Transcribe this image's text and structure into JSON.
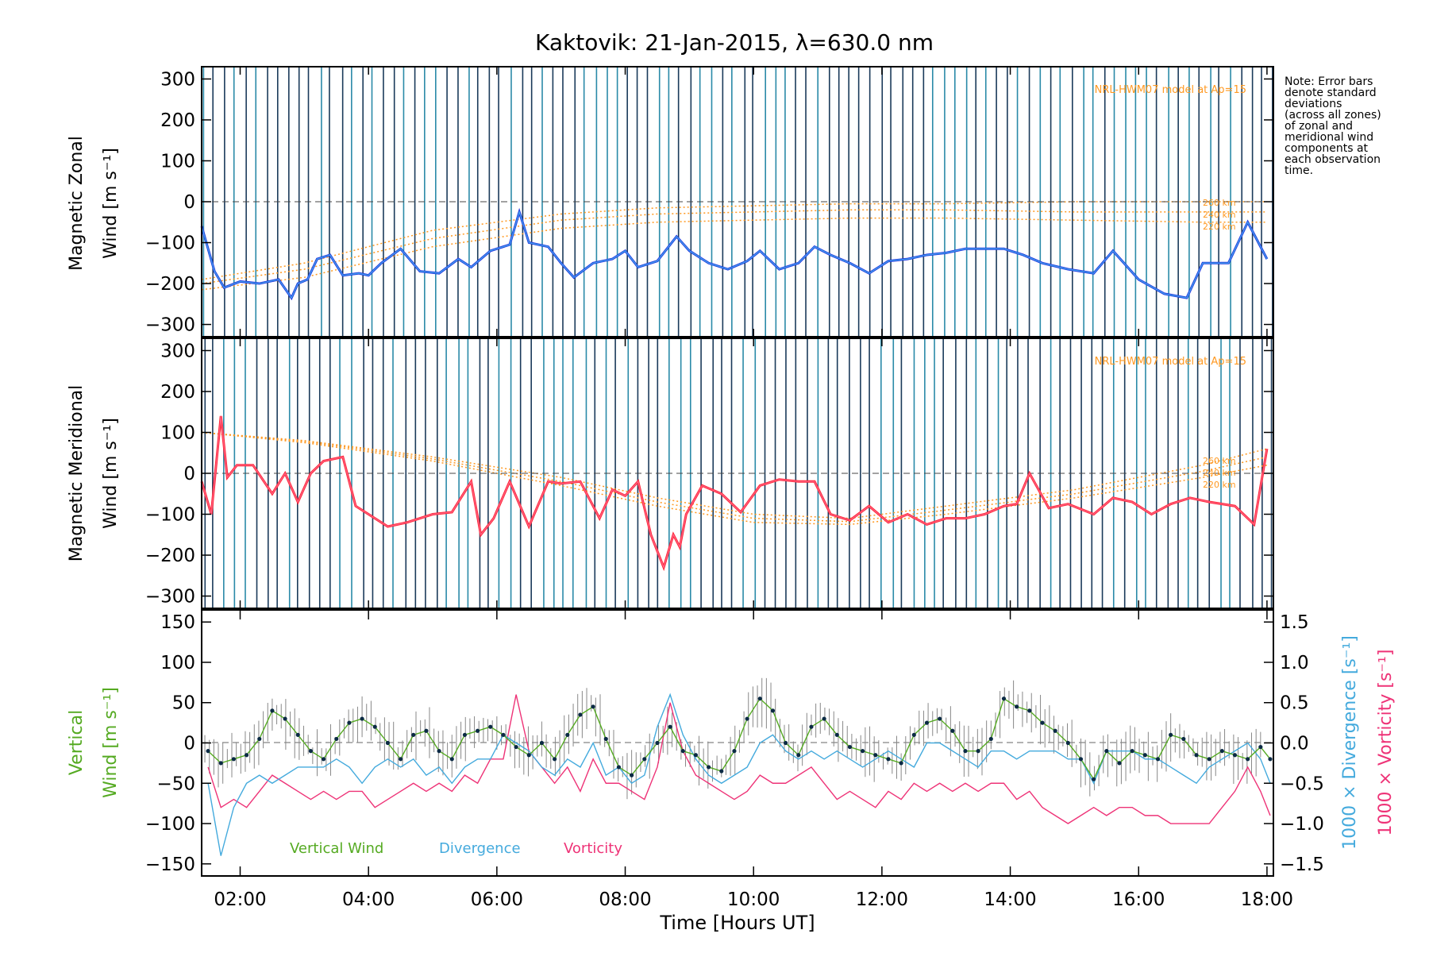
{
  "figure": {
    "title": "Kaktovik: 21-Jan-2015, λ=630.0 nm",
    "xlabel": "Time [Hours UT]",
    "note_lines": [
      "Note: Error bars",
      "denote standard",
      "deviations",
      "(across all zones)",
      "of zonal and",
      "meridional wind",
      "components at",
      "each observation",
      "time."
    ],
    "colors": {
      "zonal": "#2233dd",
      "zonal_light": "#44aaee",
      "meridional": "#ff2233",
      "meridional_light": "#ff6688",
      "vertical": "#55aa22",
      "divergence": "#44aadd",
      "vorticity": "#ee3377",
      "model": "#ff9922",
      "errorbar_dark": "#1a3a5a",
      "errorbar_light": "#2a8aa8"
    }
  },
  "chart_data": [
    {
      "type": "line",
      "panel": "zonal",
      "ylabel_line1": "Magnetic Zonal",
      "ylabel_line2": "Wind [m s⁻¹]",
      "ylim": [
        -330,
        330
      ],
      "yticks": [
        -300,
        -200,
        -100,
        0,
        100,
        200,
        300
      ],
      "ytick_labels": [
        "−300",
        "−200",
        "−100",
        "0",
        "100",
        "200",
        "300"
      ],
      "model_label": "NRL-HWM07 model at Ap=15",
      "model_alt_labels": [
        "260 km",
        "240 km",
        "220 km"
      ],
      "x": [
        1.4,
        1.6,
        1.75,
        2.0,
        2.3,
        2.6,
        2.8,
        2.9,
        3.05,
        3.2,
        3.4,
        3.6,
        3.85,
        4.0,
        4.2,
        4.5,
        4.8,
        5.1,
        5.4,
        5.6,
        5.9,
        6.2,
        6.35,
        6.5,
        6.8,
        7.0,
        7.2,
        7.5,
        7.8,
        8.0,
        8.2,
        8.5,
        8.8,
        9.0,
        9.3,
        9.6,
        9.9,
        10.1,
        10.4,
        10.7,
        10.95,
        11.2,
        11.5,
        11.8,
        12.1,
        12.4,
        12.7,
        13.0,
        13.3,
        13.6,
        13.9,
        14.2,
        14.5,
        14.9,
        15.3,
        15.6,
        16.0,
        16.4,
        16.75,
        17.0,
        17.4,
        17.7,
        18.0
      ],
      "series": [
        {
          "values": [
            -60,
            -170,
            -210,
            -195,
            -200,
            -190,
            -235,
            -200,
            -190,
            -140,
            -130,
            -180,
            -175,
            -180,
            -150,
            -115,
            -170,
            -175,
            -140,
            -160,
            -120,
            -105,
            -25,
            -100,
            -110,
            -150,
            -185,
            -150,
            -140,
            -120,
            -160,
            -145,
            -85,
            -120,
            -150,
            -165,
            -145,
            -120,
            -165,
            -150,
            -110,
            -130,
            -150,
            -175,
            -145,
            -140,
            -130,
            -125,
            -115,
            -115,
            -115,
            -130,
            -150,
            -165,
            -175,
            -120,
            -190,
            -225,
            -235,
            -150,
            -150,
            -50,
            -140
          ]
        }
      ],
      "model_series": [
        {
          "name": "260 km",
          "x": [
            1.4,
            3.0,
            5.0,
            7.0,
            8.5,
            10.0,
            11.5,
            13.0,
            15.0,
            17.0,
            18.0
          ],
          "values": [
            -190,
            -150,
            -70,
            -30,
            -15,
            -10,
            -5,
            -5,
            0,
            0,
            0
          ]
        },
        {
          "name": "240 km",
          "x": [
            1.4,
            3.0,
            5.0,
            7.0,
            8.5,
            10.0,
            11.5,
            13.0,
            15.0,
            17.0,
            18.0
          ],
          "values": [
            -200,
            -165,
            -90,
            -45,
            -30,
            -25,
            -20,
            -20,
            -25,
            -25,
            -25
          ]
        },
        {
          "name": "220 km",
          "x": [
            1.4,
            3.0,
            5.0,
            7.0,
            8.5,
            10.0,
            11.5,
            13.0,
            15.0,
            17.0,
            18.0
          ],
          "values": [
            -215,
            -185,
            -110,
            -65,
            -50,
            -45,
            -40,
            -40,
            -45,
            -50,
            -50
          ]
        }
      ]
    },
    {
      "type": "line",
      "panel": "meridional",
      "ylabel_line1": "Magnetic Meridional",
      "ylabel_line2": "Wind [m s⁻¹]",
      "ylim": [
        -330,
        330
      ],
      "yticks": [
        -300,
        -200,
        -100,
        0,
        100,
        200,
        300
      ],
      "ytick_labels": [
        "−300",
        "−200",
        "−100",
        "0",
        "100",
        "200",
        "300"
      ],
      "model_label": "NRL-HWM07 model at Ap=15",
      "model_alt_labels": [
        "260 km",
        "240 km",
        "220 km"
      ],
      "x": [
        1.4,
        1.55,
        1.7,
        1.8,
        1.95,
        2.2,
        2.5,
        2.7,
        2.9,
        3.1,
        3.3,
        3.6,
        3.8,
        4.0,
        4.3,
        4.6,
        5.0,
        5.3,
        5.6,
        5.75,
        5.95,
        6.2,
        6.5,
        6.8,
        7.0,
        7.3,
        7.6,
        7.8,
        8.0,
        8.2,
        8.4,
        8.6,
        8.75,
        8.85,
        8.95,
        9.2,
        9.5,
        9.8,
        10.1,
        10.4,
        10.7,
        10.95,
        11.2,
        11.5,
        11.8,
        12.1,
        12.4,
        12.7,
        13.0,
        13.3,
        13.6,
        13.9,
        14.1,
        14.3,
        14.6,
        14.9,
        15.3,
        15.6,
        15.9,
        16.2,
        16.5,
        16.8,
        17.1,
        17.5,
        17.8,
        18.0
      ],
      "series": [
        {
          "values": [
            -20,
            -100,
            140,
            -10,
            20,
            20,
            -50,
            0,
            -70,
            0,
            30,
            40,
            -80,
            -100,
            -130,
            -120,
            -100,
            -95,
            -20,
            -150,
            -110,
            -20,
            -130,
            -20,
            -25,
            -20,
            -110,
            -40,
            -55,
            -20,
            -150,
            -230,
            -150,
            -180,
            -100,
            -30,
            -50,
            -95,
            -30,
            -15,
            -20,
            -20,
            -100,
            -115,
            -80,
            -120,
            -100,
            -125,
            -110,
            -110,
            -100,
            -80,
            -75,
            0,
            -85,
            -75,
            -100,
            -60,
            -70,
            -100,
            -75,
            -60,
            -70,
            -80,
            -125,
            60
          ]
        }
      ],
      "model_series": [
        {
          "name": "260 km",
          "x": [
            1.4,
            3.0,
            5.0,
            7.0,
            8.5,
            10.0,
            11.5,
            13.0,
            15.0,
            17.0,
            18.0
          ],
          "values": [
            100,
            80,
            40,
            -10,
            -60,
            -100,
            -110,
            -80,
            -40,
            20,
            60
          ]
        },
        {
          "name": "240 km",
          "x": [
            1.4,
            3.0,
            5.0,
            7.0,
            8.5,
            10.0,
            11.5,
            13.0,
            15.0,
            17.0,
            18.0
          ],
          "values": [
            100,
            78,
            35,
            -20,
            -70,
            -110,
            -118,
            -90,
            -50,
            5,
            40
          ]
        },
        {
          "name": "220 km",
          "x": [
            1.4,
            3.0,
            5.0,
            7.0,
            8.5,
            10.0,
            11.5,
            13.0,
            15.0,
            17.0,
            18.0
          ],
          "values": [
            100,
            75,
            30,
            -30,
            -80,
            -120,
            -125,
            -100,
            -60,
            -10,
            20
          ]
        }
      ]
    },
    {
      "type": "line",
      "panel": "vertical",
      "ylabel_left_line1": "Vertical",
      "ylabel_left_line2": "Wind [m s⁻¹]",
      "ylabel_right1": "1000 × Divergence [s⁻¹]",
      "ylabel_right2": "1000 × Vorticity [s⁻¹]",
      "ylim": [
        -165,
        165
      ],
      "yticks": [
        -150,
        -100,
        -50,
        0,
        50,
        100,
        150
      ],
      "ytick_labels": [
        "−150",
        "−100",
        "−50",
        "0",
        "50",
        "100",
        "150"
      ],
      "ylim_right": [
        -1.65,
        1.65
      ],
      "yticks_right": [
        -1.5,
        -1.0,
        -0.5,
        0.0,
        0.5,
        1.0,
        1.5
      ],
      "ytick_labels_right": [
        "−1.5",
        "−1.0",
        "−0.5",
        "0.0",
        "0.5",
        "1.0",
        "1.5"
      ],
      "xlim": [
        1.4,
        18.1
      ],
      "xticks": [
        2,
        4,
        6,
        8,
        10,
        12,
        14,
        16,
        18
      ],
      "xtick_labels": [
        "02:00",
        "04:00",
        "06:00",
        "08:00",
        "10:00",
        "12:00",
        "14:00",
        "16:00",
        "18:00"
      ],
      "legend": [
        "Vertical Wind",
        "Divergence",
        "Vorticity"
      ],
      "x": [
        1.5,
        1.7,
        1.9,
        2.1,
        2.3,
        2.5,
        2.7,
        2.9,
        3.1,
        3.3,
        3.5,
        3.7,
        3.9,
        4.1,
        4.3,
        4.5,
        4.7,
        4.9,
        5.1,
        5.3,
        5.5,
        5.7,
        5.9,
        6.1,
        6.3,
        6.5,
        6.7,
        6.9,
        7.1,
        7.3,
        7.5,
        7.7,
        7.9,
        8.1,
        8.3,
        8.5,
        8.7,
        8.9,
        9.1,
        9.3,
        9.5,
        9.7,
        9.9,
        10.1,
        10.3,
        10.5,
        10.7,
        10.9,
        11.1,
        11.3,
        11.5,
        11.7,
        11.9,
        12.1,
        12.3,
        12.5,
        12.7,
        12.9,
        13.1,
        13.3,
        13.5,
        13.7,
        13.9,
        14.1,
        14.3,
        14.5,
        14.7,
        14.9,
        15.1,
        15.3,
        15.5,
        15.7,
        15.9,
        16.1,
        16.3,
        16.5,
        16.7,
        16.9,
        17.1,
        17.3,
        17.5,
        17.7,
        17.9,
        18.05
      ],
      "series": [
        {
          "name": "Vertical Wind",
          "values": [
            -10,
            -25,
            -20,
            -15,
            5,
            40,
            30,
            10,
            -10,
            -20,
            5,
            25,
            30,
            20,
            0,
            -20,
            10,
            15,
            -10,
            -20,
            10,
            15,
            20,
            10,
            -5,
            -15,
            0,
            -20,
            10,
            35,
            45,
            5,
            -30,
            -40,
            -20,
            0,
            20,
            -10,
            -15,
            -30,
            -35,
            -10,
            30,
            55,
            40,
            0,
            -15,
            20,
            30,
            10,
            -5,
            -10,
            -15,
            -20,
            -25,
            10,
            25,
            30,
            15,
            -10,
            -10,
            5,
            55,
            45,
            40,
            25,
            15,
            0,
            -20,
            -45,
            -10,
            -25,
            -10,
            -15,
            -20,
            10,
            5,
            -15,
            -20,
            -10,
            -15,
            -20,
            -5,
            -20
          ]
        },
        {
          "name": "Divergence",
          "values": [
            -0.5,
            -1.4,
            -0.8,
            -0.5,
            -0.4,
            -0.5,
            -0.4,
            -0.3,
            -0.3,
            -0.3,
            -0.2,
            -0.3,
            -0.5,
            -0.3,
            -0.2,
            -0.3,
            -0.2,
            -0.4,
            -0.3,
            -0.5,
            -0.3,
            -0.2,
            -0.2,
            0.1,
            0.0,
            -0.1,
            -0.3,
            -0.4,
            -0.2,
            -0.3,
            0.0,
            -0.4,
            -0.3,
            -0.5,
            -0.4,
            0.2,
            0.6,
            0.1,
            -0.2,
            -0.4,
            -0.5,
            -0.4,
            -0.3,
            0.0,
            0.1,
            -0.1,
            -0.2,
            -0.1,
            -0.2,
            -0.1,
            -0.2,
            -0.3,
            -0.2,
            -0.1,
            -0.2,
            -0.3,
            0.0,
            0.0,
            -0.1,
            -0.2,
            -0.3,
            -0.1,
            -0.1,
            -0.2,
            -0.1,
            -0.1,
            -0.1,
            -0.2,
            -0.2,
            -0.5,
            -0.1,
            -0.1,
            -0.1,
            -0.2,
            -0.2,
            -0.3,
            -0.4,
            -0.5,
            -0.3,
            -0.2,
            -0.1,
            0.0,
            -0.2,
            -0.5
          ]
        },
        {
          "name": "Vorticity",
          "values": [
            -0.3,
            -0.8,
            -0.7,
            -0.8,
            -0.6,
            -0.4,
            -0.5,
            -0.6,
            -0.7,
            -0.6,
            -0.7,
            -0.6,
            -0.6,
            -0.8,
            -0.7,
            -0.6,
            -0.5,
            -0.6,
            -0.5,
            -0.6,
            -0.4,
            -0.5,
            -0.2,
            -0.2,
            0.6,
            -0.1,
            -0.3,
            -0.5,
            -0.3,
            -0.6,
            -0.2,
            -0.5,
            -0.5,
            -0.6,
            -0.7,
            -0.3,
            0.5,
            -0.1,
            -0.4,
            -0.5,
            -0.6,
            -0.7,
            -0.6,
            -0.4,
            -0.5,
            -0.5,
            -0.4,
            -0.3,
            -0.5,
            -0.7,
            -0.6,
            -0.7,
            -0.8,
            -0.6,
            -0.7,
            -0.5,
            -0.6,
            -0.5,
            -0.6,
            -0.5,
            -0.6,
            -0.5,
            -0.5,
            -0.7,
            -0.6,
            -0.8,
            -0.9,
            -1.0,
            -0.9,
            -0.8,
            -0.9,
            -0.8,
            -0.8,
            -0.9,
            -0.9,
            -1.0,
            -1.0,
            -1.0,
            -1.0,
            -0.8,
            -0.6,
            -0.3,
            -0.6,
            -0.9
          ]
        }
      ]
    }
  ]
}
